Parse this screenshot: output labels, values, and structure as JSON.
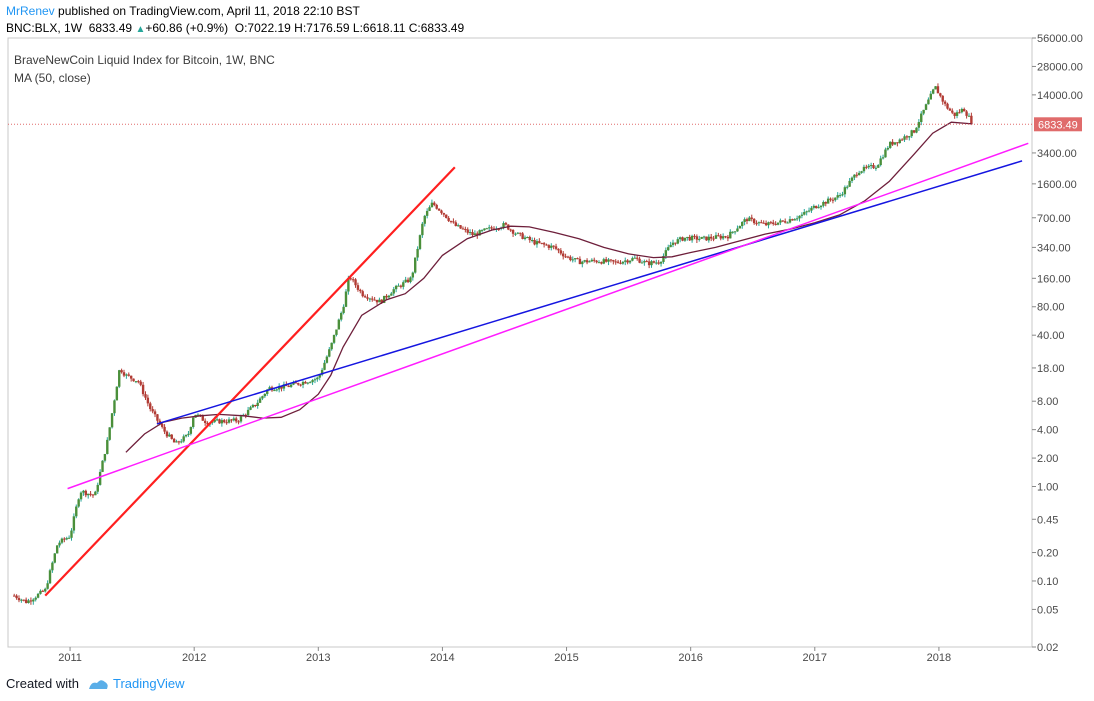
{
  "header": {
    "author": "MrRenev",
    "published": " published on TradingView.com, April 11, 2018 22:10 BST",
    "symbol": "BNC:BLX, 1W",
    "last": "6833.49",
    "change_arrow": "▲",
    "change": "+60.86 (+0.9%)",
    "o_label": "O:",
    "o_value": "7022.19",
    "h_label": "H:",
    "h_value": "7176.59",
    "l_label": "L:",
    "l_value": "6618.11",
    "c_label": "C:",
    "c_value": "6833.49"
  },
  "legend": {
    "title": "BraveNewCoin Liquid Index for Bitcoin, 1W, BNC",
    "ma": "MA (50, close)"
  },
  "footer": {
    "created": "Created with",
    "brand": "TradingView"
  },
  "colors": {
    "up": "#26a69a",
    "down": "#b23b34",
    "candle_body_up": "#4a8f3a",
    "ma": "#6e1f3b",
    "red_line": "#ff1f1f",
    "blue_line": "#1515e0",
    "magenta_line": "#ff1cff",
    "price_tag": "#e06b6b"
  },
  "chart_data": {
    "type": "candlestick",
    "scale": "log",
    "ylim": [
      0.02,
      56000
    ],
    "xlim": [
      2010.5,
      2018.75
    ],
    "y_ticks": [
      "56000.00",
      "28000.00",
      "14000.00",
      "6833.49",
      "3400.00",
      "1600.00",
      "700.00",
      "340.00",
      "160.00",
      "80.00",
      "40.00",
      "18.00",
      "8.00",
      "4.00",
      "2.00",
      "1.00",
      "0.45",
      "0.20",
      "0.10",
      "0.05",
      "0.02"
    ],
    "y_tick_values": [
      56000,
      28000,
      14000,
      3400,
      1600,
      700,
      340,
      160,
      80,
      40,
      18,
      8,
      4,
      2,
      1,
      0.45,
      0.2,
      0.1,
      0.05,
      0.02
    ],
    "x_ticks": [
      "2011",
      "2012",
      "2013",
      "2014",
      "2015",
      "2016",
      "2017",
      "2018"
    ],
    "x_tick_values": [
      2011,
      2012,
      2013,
      2014,
      2015,
      2016,
      2017,
      2018
    ],
    "last_price": {
      "value": 6833.49,
      "label": "6833.49"
    },
    "price_path": [
      [
        2010.55,
        0.07
      ],
      [
        2010.65,
        0.06
      ],
      [
        2010.8,
        0.08
      ],
      [
        2010.9,
        0.25
      ],
      [
        2011.0,
        0.3
      ],
      [
        2011.08,
        0.9
      ],
      [
        2011.2,
        0.8
      ],
      [
        2011.3,
        3.0
      ],
      [
        2011.4,
        18
      ],
      [
        2011.45,
        15
      ],
      [
        2011.55,
        13
      ],
      [
        2011.65,
        6.5
      ],
      [
        2011.75,
        4.0
      ],
      [
        2011.85,
        2.8
      ],
      [
        2011.95,
        3.5
      ],
      [
        2012.0,
        6.0
      ],
      [
        2012.1,
        4.8
      ],
      [
        2012.2,
        4.9
      ],
      [
        2012.35,
        5.0
      ],
      [
        2012.5,
        7.5
      ],
      [
        2012.6,
        11
      ],
      [
        2012.75,
        11.5
      ],
      [
        2012.9,
        13
      ],
      [
        2013.0,
        14
      ],
      [
        2013.1,
        30
      ],
      [
        2013.2,
        80
      ],
      [
        2013.25,
        170
      ],
      [
        2013.35,
        110
      ],
      [
        2013.5,
        90
      ],
      [
        2013.6,
        120
      ],
      [
        2013.75,
        160
      ],
      [
        2013.85,
        700
      ],
      [
        2013.92,
        1000
      ],
      [
        2014.0,
        800
      ],
      [
        2014.1,
        580
      ],
      [
        2014.25,
        460
      ],
      [
        2014.35,
        520
      ],
      [
        2014.5,
        590
      ],
      [
        2014.6,
        470
      ],
      [
        2014.75,
        380
      ],
      [
        2014.9,
        340
      ],
      [
        2015.0,
        270
      ],
      [
        2015.1,
        240
      ],
      [
        2015.25,
        245
      ],
      [
        2015.4,
        235
      ],
      [
        2015.55,
        260
      ],
      [
        2015.65,
        230
      ],
      [
        2015.75,
        240
      ],
      [
        2015.85,
        380
      ],
      [
        2015.95,
        430
      ],
      [
        2016.1,
        420
      ],
      [
        2016.3,
        450
      ],
      [
        2016.45,
        680
      ],
      [
        2016.6,
        590
      ],
      [
        2016.75,
        640
      ],
      [
        2016.9,
        750
      ],
      [
        2017.0,
        920
      ],
      [
        2017.1,
        1050
      ],
      [
        2017.2,
        1200
      ],
      [
        2017.35,
        2200
      ],
      [
        2017.5,
        2500
      ],
      [
        2017.6,
        4200
      ],
      [
        2017.7,
        4800
      ],
      [
        2017.8,
        5800
      ],
      [
        2017.9,
        11000
      ],
      [
        2017.97,
        17000
      ],
      [
        2018.05,
        11000
      ],
      [
        2018.12,
        8500
      ],
      [
        2018.2,
        10000
      ],
      [
        2018.27,
        7000
      ]
    ],
    "ma50_path": [
      [
        2011.45,
        2.3
      ],
      [
        2011.6,
        3.6
      ],
      [
        2011.75,
        4.8
      ],
      [
        2011.9,
        5.3
      ],
      [
        2012.05,
        5.6
      ],
      [
        2012.2,
        5.8
      ],
      [
        2012.4,
        5.6
      ],
      [
        2012.55,
        5.3
      ],
      [
        2012.7,
        5.4
      ],
      [
        2012.85,
        6.5
      ],
      [
        2013.0,
        9.5
      ],
      [
        2013.1,
        15
      ],
      [
        2013.2,
        30
      ],
      [
        2013.35,
        65
      ],
      [
        2013.55,
        95
      ],
      [
        2013.7,
        110
      ],
      [
        2013.85,
        160
      ],
      [
        2014.0,
        280
      ],
      [
        2014.2,
        420
      ],
      [
        2014.4,
        520
      ],
      [
        2014.55,
        570
      ],
      [
        2014.7,
        560
      ],
      [
        2014.9,
        490
      ],
      [
        2015.1,
        420
      ],
      [
        2015.3,
        340
      ],
      [
        2015.5,
        290
      ],
      [
        2015.7,
        265
      ],
      [
        2015.85,
        270
      ],
      [
        2016.0,
        300
      ],
      [
        2016.2,
        340
      ],
      [
        2016.4,
        400
      ],
      [
        2016.6,
        470
      ],
      [
        2016.8,
        530
      ],
      [
        2017.0,
        620
      ],
      [
        2017.2,
        750
      ],
      [
        2017.4,
        1050
      ],
      [
        2017.6,
        1700
      ],
      [
        2017.8,
        3300
      ],
      [
        2017.95,
        5500
      ],
      [
        2018.1,
        7200
      ],
      [
        2018.27,
        6900
      ]
    ],
    "trendlines": [
      {
        "name": "red",
        "points": [
          [
            2010.8,
            0.07
          ],
          [
            2014.1,
            2400
          ]
        ]
      },
      {
        "name": "blue",
        "points": [
          [
            2011.7,
            4.6
          ],
          [
            2018.67,
            2800
          ]
        ]
      },
      {
        "name": "magenta",
        "points": [
          [
            2010.98,
            0.95
          ],
          [
            2018.72,
            4300
          ]
        ]
      }
    ]
  }
}
